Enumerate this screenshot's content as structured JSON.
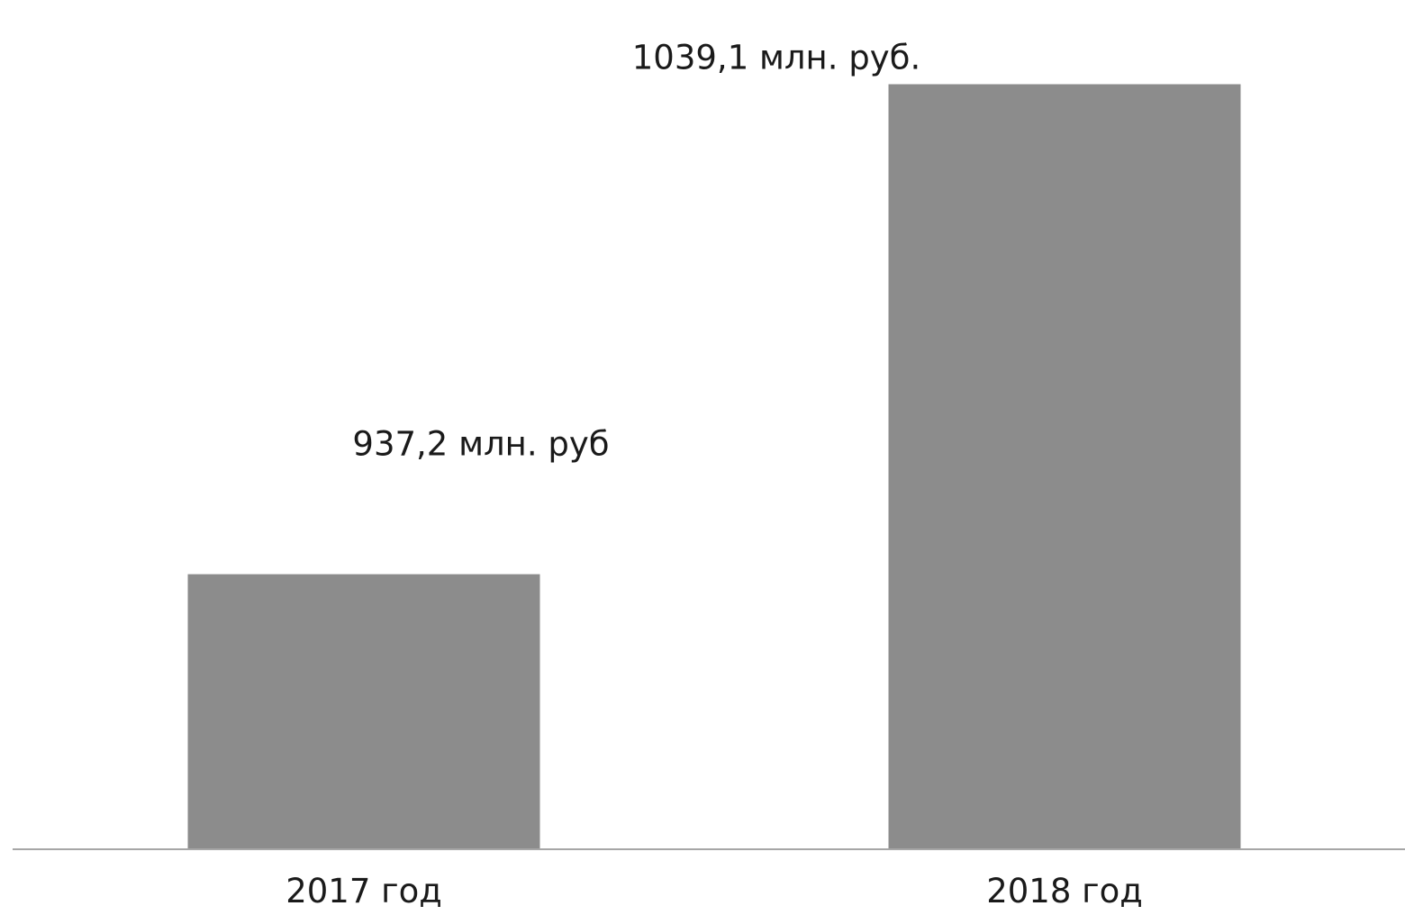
{
  "chart_data": {
    "type": "bar",
    "categories": [
      "2017 год",
      "2018 год"
    ],
    "values": [
      937.2,
      1039.1
    ],
    "data_labels": [
      "937,2 млн. руб",
      "1039,1 млн. руб."
    ],
    "title": "",
    "xlabel": "",
    "ylabel": "",
    "ylim": [
      880,
      1045
    ],
    "grid": false,
    "legend": "none",
    "bar_color": "#8c8c8c",
    "axis_color": "#a6a6a6"
  }
}
